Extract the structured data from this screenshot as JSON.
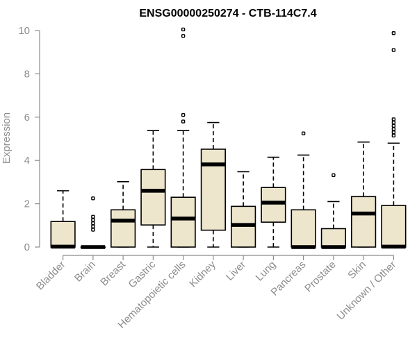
{
  "chart_data": {
    "type": "boxplot",
    "title": "ENSG00000250274 - CTB-114C7.4",
    "ylabel": "Expression",
    "xlabel": "",
    "ylim": [
      0,
      10
    ],
    "yticks": [
      0,
      2,
      4,
      6,
      8,
      10
    ],
    "box_color": "#ede6cd",
    "categories": [
      "Bladder",
      "Brain",
      "Breast",
      "Gastric",
      "Hematopoietic cells",
      "Kidney",
      "Liver",
      "Lung",
      "Pancreas",
      "Prostate",
      "Skin",
      "Unknown / Other"
    ],
    "boxes": [
      {
        "name": "Bladder",
        "low": 0,
        "q1": 0,
        "median": 0.02,
        "q3": 1.18,
        "high": 2.6,
        "outliers": []
      },
      {
        "name": "Brain",
        "low": 0,
        "q1": 0,
        "median": 0,
        "q3": 0,
        "high": 0,
        "outliers": [
          0.8,
          0.95,
          1.1,
          1.25,
          1.4,
          2.25
        ]
      },
      {
        "name": "Breast",
        "low": 0,
        "q1": 0,
        "median": 1.22,
        "q3": 1.72,
        "high": 3.02,
        "outliers": []
      },
      {
        "name": "Gastric",
        "low": 0,
        "q1": 1.02,
        "median": 2.6,
        "q3": 3.58,
        "high": 5.38,
        "outliers": []
      },
      {
        "name": "Hematopoietic cells",
        "low": 0,
        "q1": 0,
        "median": 1.32,
        "q3": 2.3,
        "high": 5.38,
        "outliers": [
          5.8,
          6.1,
          9.75,
          10.05
        ]
      },
      {
        "name": "Kidney",
        "low": 0,
        "q1": 0.78,
        "median": 3.82,
        "q3": 4.52,
        "high": 5.75,
        "outliers": []
      },
      {
        "name": "Liver",
        "low": 0,
        "q1": 0,
        "median": 1.02,
        "q3": 1.88,
        "high": 3.48,
        "outliers": []
      },
      {
        "name": "Lung",
        "low": 0,
        "q1": 1.15,
        "median": 2.05,
        "q3": 2.75,
        "high": 4.15,
        "outliers": []
      },
      {
        "name": "Pancreas",
        "low": 0,
        "q1": 0,
        "median": 0,
        "q3": 1.72,
        "high": 4.25,
        "outliers": [
          5.25
        ]
      },
      {
        "name": "Prostate",
        "low": 0,
        "q1": 0,
        "median": 0,
        "q3": 0.85,
        "high": 2.1,
        "outliers": [
          3.32
        ]
      },
      {
        "name": "Skin",
        "low": 0,
        "q1": 0,
        "median": 1.55,
        "q3": 2.33,
        "high": 4.85,
        "outliers": []
      },
      {
        "name": "Unknown / Other",
        "low": 0,
        "q1": 0,
        "median": 0.02,
        "q3": 1.92,
        "high": 4.8,
        "outliers": [
          5.15,
          5.3,
          5.45,
          5.6,
          5.75,
          5.9,
          9.1,
          9.88
        ]
      }
    ]
  }
}
